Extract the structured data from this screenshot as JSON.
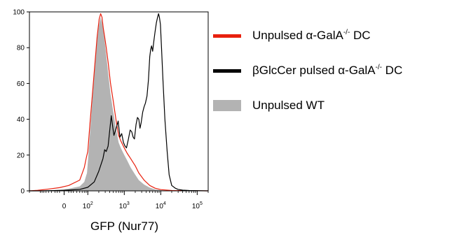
{
  "chart_data": {
    "type": "histogram",
    "xlabel": "GFP (Nur77)",
    "ylabel": "",
    "x_scale": "biexponential",
    "xlim": [
      -200,
      200000
    ],
    "ylim": [
      0,
      100
    ],
    "y_ticks": [
      0,
      20,
      40,
      60,
      80,
      100
    ],
    "x_ticks": [
      {
        "value": 0,
        "label": "0"
      },
      {
        "value": 100,
        "label": "10",
        "exp": "2"
      },
      {
        "value": 1000,
        "label": "10",
        "exp": "3"
      },
      {
        "value": 10000,
        "label": "10",
        "exp": "4"
      },
      {
        "value": 100000,
        "label": "10",
        "exp": "5"
      }
    ],
    "legend_position": "right",
    "series": [
      {
        "name": "Unpulsed WT",
        "style": "filled",
        "color": "#b3b3b3",
        "points": [
          [
            -200,
            0
          ],
          [
            -120,
            0
          ],
          [
            -60,
            0.3
          ],
          [
            -20,
            0.6
          ],
          [
            20,
            1.2
          ],
          [
            60,
            2.5
          ],
          [
            80,
            5
          ],
          [
            95,
            10
          ],
          [
            110,
            27
          ],
          [
            130,
            48
          ],
          [
            150,
            65
          ],
          [
            175,
            82
          ],
          [
            200,
            92
          ],
          [
            225,
            97
          ],
          [
            245,
            94
          ],
          [
            265,
            90
          ],
          [
            290,
            84
          ],
          [
            320,
            76
          ],
          [
            360,
            66
          ],
          [
            420,
            54
          ],
          [
            500,
            44
          ],
          [
            600,
            34
          ],
          [
            700,
            27
          ],
          [
            800,
            24
          ],
          [
            1000,
            20
          ],
          [
            1200,
            17
          ],
          [
            1500,
            13
          ],
          [
            2000,
            9
          ],
          [
            2500,
            6
          ],
          [
            3500,
            3.5
          ],
          [
            5000,
            1.8
          ],
          [
            7000,
            0.8
          ],
          [
            10000,
            0.4
          ],
          [
            20000,
            0.1
          ],
          [
            200000,
            0
          ]
        ]
      },
      {
        "name": "Unpulsed α-GalA-/- DC",
        "style": "line",
        "color": "#e8200e",
        "points": [
          [
            -200,
            0
          ],
          [
            -120,
            0.3
          ],
          [
            -60,
            1
          ],
          [
            -20,
            1.8
          ],
          [
            20,
            3
          ],
          [
            60,
            6
          ],
          [
            80,
            13
          ],
          [
            92,
            19
          ],
          [
            100,
            22
          ],
          [
            115,
            38
          ],
          [
            135,
            55
          ],
          [
            155,
            70
          ],
          [
            180,
            86
          ],
          [
            205,
            96
          ],
          [
            225,
            99
          ],
          [
            245,
            97
          ],
          [
            265,
            91
          ],
          [
            290,
            86
          ],
          [
            320,
            80
          ],
          [
            360,
            72
          ],
          [
            420,
            60
          ],
          [
            500,
            50
          ],
          [
            600,
            39
          ],
          [
            700,
            31
          ],
          [
            800,
            28
          ],
          [
            1000,
            24
          ],
          [
            1200,
            21
          ],
          [
            1500,
            18
          ],
          [
            2000,
            14
          ],
          [
            2500,
            10
          ],
          [
            3500,
            6
          ],
          [
            5000,
            3
          ],
          [
            7000,
            1.5
          ],
          [
            10000,
            0.7
          ],
          [
            20000,
            0.2
          ],
          [
            200000,
            0
          ]
        ]
      },
      {
        "name": "βGlcCer pulsed α-GalA-/- DC",
        "style": "line",
        "color": "#000000",
        "points": [
          [
            -200,
            0
          ],
          [
            -100,
            0
          ],
          [
            0,
            0.3
          ],
          [
            60,
            0.8
          ],
          [
            100,
            2
          ],
          [
            150,
            5
          ],
          [
            200,
            11
          ],
          [
            260,
            18
          ],
          [
            290,
            23
          ],
          [
            320,
            22
          ],
          [
            360,
            25
          ],
          [
            400,
            34
          ],
          [
            440,
            42
          ],
          [
            480,
            36
          ],
          [
            520,
            31
          ],
          [
            600,
            35
          ],
          [
            680,
            39
          ],
          [
            760,
            30
          ],
          [
            850,
            32
          ],
          [
            950,
            27
          ],
          [
            1050,
            25
          ],
          [
            1150,
            24
          ],
          [
            1300,
            29
          ],
          [
            1450,
            34
          ],
          [
            1600,
            33
          ],
          [
            1750,
            30
          ],
          [
            1900,
            29
          ],
          [
            2100,
            37
          ],
          [
            2300,
            41
          ],
          [
            2500,
            40
          ],
          [
            2700,
            35
          ],
          [
            2900,
            38
          ],
          [
            3200,
            44
          ],
          [
            3500,
            47
          ],
          [
            3800,
            49
          ],
          [
            4200,
            53
          ],
          [
            4600,
            62
          ],
          [
            5000,
            75
          ],
          [
            5300,
            79
          ],
          [
            5600,
            81
          ],
          [
            6000,
            78
          ],
          [
            6500,
            84
          ],
          [
            7000,
            89
          ],
          [
            7600,
            94
          ],
          [
            8200,
            97
          ],
          [
            8700,
            99
          ],
          [
            9200,
            97
          ],
          [
            9800,
            93
          ],
          [
            10500,
            80
          ],
          [
            11500,
            62
          ],
          [
            13000,
            40
          ],
          [
            15000,
            22
          ],
          [
            17000,
            9
          ],
          [
            20000,
            3
          ],
          [
            25000,
            1.5
          ],
          [
            30000,
            0.8
          ],
          [
            40000,
            0.4
          ],
          [
            60000,
            0.2
          ],
          [
            200000,
            0
          ]
        ]
      }
    ]
  },
  "legend": [
    {
      "key": "red",
      "label": "Unpulsed α-GalA",
      "sup": "-/-",
      "suffix": " DC",
      "color": "#e8200e",
      "swatch": "line"
    },
    {
      "key": "black",
      "label": "βGlcCer pulsed α-GalA",
      "sup": "-/-",
      "suffix": " DC",
      "color": "#000000",
      "swatch": "line"
    },
    {
      "key": "gray",
      "label": "Unpulsed WT",
      "sup": "",
      "suffix": "",
      "color": "#b3b3b3",
      "swatch": "fill"
    }
  ]
}
